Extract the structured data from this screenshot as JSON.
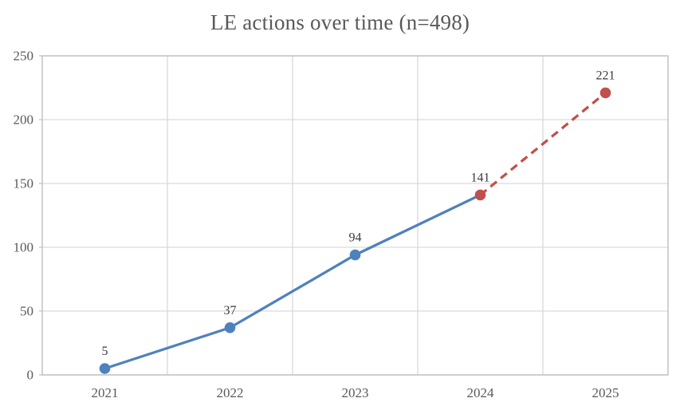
{
  "chart_data": {
    "type": "line",
    "title": "LE actions over time (n=498)",
    "categories": [
      "2021",
      "2022",
      "2023",
      "2024",
      "2025"
    ],
    "values": [
      5,
      37,
      94,
      141,
      221
    ],
    "data_labels": [
      "5",
      "37",
      "94",
      "141",
      "221"
    ],
    "point_colors": [
      "#4F81BD",
      "#4F81BD",
      "#4F81BD",
      "#C0504D",
      "#C0504D"
    ],
    "segments": [
      {
        "from_index": 0,
        "to_index": 3,
        "line_style": "solid",
        "color": "#4F81BD"
      },
      {
        "from_index": 3,
        "to_index": 4,
        "line_style": "dashed",
        "color": "#C0504D"
      }
    ],
    "xlabel": "",
    "ylabel": "",
    "ylim": [
      0,
      250
    ],
    "yticks": [
      "0",
      "50",
      "100",
      "150",
      "200",
      "250"
    ],
    "ytick_values": [
      0,
      50,
      100,
      150,
      200,
      250
    ],
    "grid": true,
    "legend": "none",
    "colors": {
      "grid": "#D9D9D9",
      "axis_line": "#BFBFBF",
      "axis_text": "#595959",
      "label_text": "#3B3B3B",
      "title_text": "#595959",
      "background": "#FFFFFF"
    }
  }
}
